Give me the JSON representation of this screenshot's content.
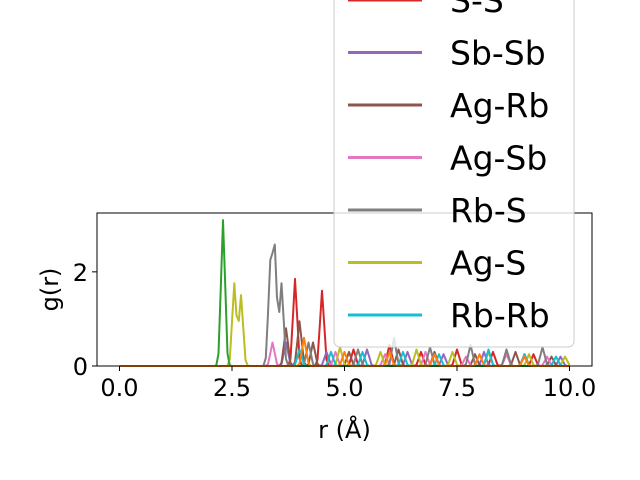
{
  "chart_data": {
    "type": "line",
    "title": "",
    "xlabel": "r (Å)",
    "ylabel": "g(r)",
    "xlim": [
      -0.5,
      10.5
    ],
    "ylim": [
      0,
      3.25
    ],
    "xticks": [
      {
        "value": 0.0,
        "label": "0.0"
      },
      {
        "value": 2.5,
        "label": "2.5"
      },
      {
        "value": 5.0,
        "label": "5.0"
      },
      {
        "value": 7.5,
        "label": "7.5"
      },
      {
        "value": 10.0,
        "label": "10.0"
      }
    ],
    "yticks": [
      {
        "value": 0,
        "label": "0"
      },
      {
        "value": 2,
        "label": "2"
      }
    ],
    "grid": false,
    "legend_position": "upper-right, extending above the axes",
    "series": [
      {
        "name": "S-S",
        "color": "#d62728",
        "peaks": [
          [
            3.9,
            1.85
          ],
          [
            4.5,
            1.6
          ],
          [
            5.2,
            0.35
          ],
          [
            6.0,
            0.45
          ],
          [
            6.7,
            0.3
          ],
          [
            7.5,
            0.35
          ],
          [
            8.3,
            0.3
          ],
          [
            9.2,
            0.25
          ]
        ]
      },
      {
        "name": "Sb-Sb",
        "color": "#9467bd",
        "peaks": [
          [
            3.7,
            0.5
          ],
          [
            4.6,
            0.3
          ],
          [
            5.5,
            0.35
          ],
          [
            6.4,
            0.3
          ],
          [
            7.2,
            0.25
          ],
          [
            8.1,
            0.3
          ],
          [
            9.0,
            0.25
          ],
          [
            9.8,
            0.2
          ]
        ]
      },
      {
        "name": "Ag-Rb",
        "color": "#8c564b",
        "peaks": [
          [
            3.7,
            0.8
          ],
          [
            4.0,
            0.95
          ],
          [
            4.3,
            0.5
          ],
          [
            5.1,
            0.3
          ],
          [
            6.2,
            0.35
          ],
          [
            7.0,
            0.3
          ],
          [
            7.9,
            0.25
          ],
          [
            8.8,
            0.3
          ],
          [
            9.6,
            0.2
          ]
        ]
      },
      {
        "name": "Ag-Sb",
        "color": "#e377c2",
        "peaks": [
          [
            3.4,
            0.5
          ],
          [
            4.8,
            0.3
          ],
          [
            5.9,
            0.25
          ],
          [
            6.8,
            0.3
          ],
          [
            7.7,
            0.2
          ],
          [
            8.6,
            0.25
          ],
          [
            9.5,
            0.2
          ]
        ]
      },
      {
        "name": "Rb-S",
        "color": "#7f7f7f",
        "peaks": [
          [
            3.35,
            2.05
          ],
          [
            3.45,
            2.4
          ],
          [
            3.6,
            1.75
          ],
          [
            4.2,
            0.5
          ],
          [
            5.3,
            0.35
          ],
          [
            6.1,
            0.6
          ],
          [
            6.9,
            0.4
          ],
          [
            7.8,
            0.45
          ],
          [
            8.6,
            0.35
          ],
          [
            9.4,
            0.4
          ]
        ]
      },
      {
        "name": "Ag-S",
        "color": "#bcbd22",
        "peaks": [
          [
            2.55,
            1.75
          ],
          [
            2.7,
            1.5
          ],
          [
            4.9,
            0.4
          ],
          [
            5.8,
            0.3
          ],
          [
            6.6,
            0.35
          ],
          [
            7.4,
            0.3
          ],
          [
            8.2,
            0.3
          ],
          [
            9.1,
            0.25
          ],
          [
            9.9,
            0.2
          ]
        ]
      },
      {
        "name": "Rb-Rb",
        "color": "#17becf",
        "peaks": [
          [
            4.0,
            0.35
          ],
          [
            4.7,
            0.3
          ],
          [
            5.4,
            0.3
          ],
          [
            6.3,
            0.3
          ],
          [
            7.1,
            0.25
          ],
          [
            8.2,
            0.35
          ],
          [
            9.0,
            0.25
          ],
          [
            9.7,
            0.2
          ]
        ]
      },
      {
        "name": "",
        "color": "#2ca02c",
        "peaks": [
          [
            2.3,
            3.1
          ]
        ]
      },
      {
        "name": "",
        "color": "#ff7f0e",
        "peaks": [
          [
            4.1,
            0.6
          ],
          [
            5.0,
            0.3
          ],
          [
            6.0,
            0.3
          ],
          [
            7.0,
            0.25
          ],
          [
            8.0,
            0.25
          ],
          [
            9.0,
            0.2
          ]
        ]
      }
    ]
  }
}
